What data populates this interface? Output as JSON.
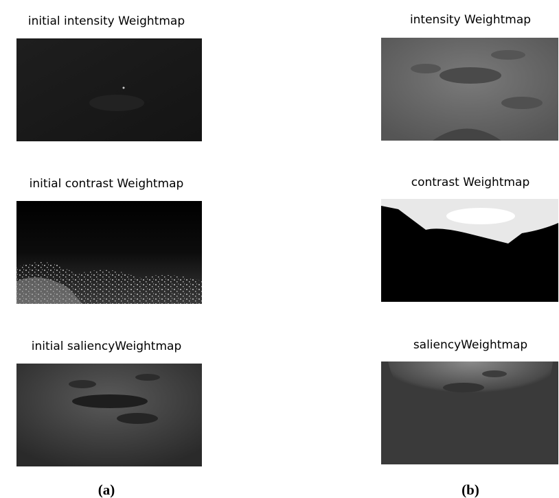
{
  "panels": [
    {
      "title": "initial intensity Weightmap"
    },
    {
      "title": "intensity Weightmap"
    },
    {
      "title": "initial contrast Weightmap"
    },
    {
      "title": "contrast Weightmap"
    },
    {
      "title": "initial saliencyWeightmap"
    },
    {
      "title": "saliencyWeightmap"
    }
  ],
  "captions": [
    "(a)",
    "(b)"
  ]
}
